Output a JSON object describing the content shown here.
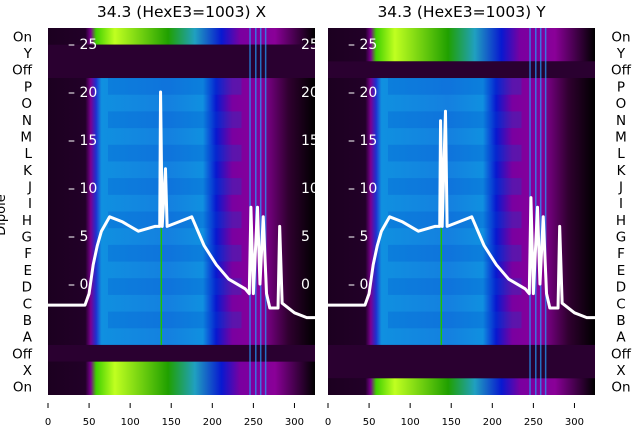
{
  "chart_data": [
    {
      "type": "heatmap",
      "title": "34.3 (HexE3=1003) X",
      "ylabel": "Dipole",
      "row_labels": [
        "On",
        "Y",
        "Off",
        "P",
        "O",
        "N",
        "M",
        "L",
        "K",
        "J",
        "I",
        "H",
        "G",
        "F",
        "E",
        "D",
        "C",
        "B",
        "A",
        "Off",
        "X",
        "On"
      ],
      "x_ticks": [
        0,
        50,
        100,
        150,
        200,
        250,
        300
      ],
      "xlim": [
        0,
        325
      ],
      "inner_y_ticks": [
        25,
        20,
        15,
        10,
        5,
        0
      ],
      "ylim": [
        -3.5,
        26
      ],
      "line": {
        "color": "#ffffff",
        "x": [
          0,
          45,
          50,
          55,
          60,
          65,
          75,
          90,
          110,
          130,
          136,
          137,
          139,
          143,
          145,
          160,
          175,
          190,
          205,
          220,
          240,
          245,
          247,
          250,
          255,
          258,
          262,
          266,
          270,
          280,
          282,
          285,
          300,
          315,
          325
        ],
        "y": [
          -2.2,
          -2.2,
          -1,
          2,
          4,
          5.5,
          7,
          6.5,
          5.5,
          6,
          6,
          20,
          6,
          12,
          6,
          6.5,
          7,
          4,
          2,
          0.5,
          -0.5,
          -1,
          8,
          -1,
          8,
          0,
          7,
          -1,
          -2.5,
          -2.5,
          6,
          -2,
          -3,
          -3.5,
          -3.5
        ]
      }
    },
    {
      "type": "heatmap",
      "title": "34.3 (HexE3=1003) Y",
      "row_labels": [
        "On",
        "Y",
        "Off",
        "P",
        "O",
        "N",
        "M",
        "L",
        "K",
        "J",
        "I",
        "H",
        "G",
        "F",
        "E",
        "D",
        "C",
        "B",
        "A",
        "Off",
        "X",
        "On"
      ],
      "x_ticks": [
        0,
        50,
        100,
        150,
        200,
        250,
        300
      ],
      "xlim": [
        0,
        325
      ],
      "inner_y_ticks": [
        25,
        20,
        15,
        10,
        5,
        0
      ],
      "ylim": [
        -3.5,
        26
      ],
      "line": {
        "color": "#ffffff",
        "x": [
          0,
          45,
          50,
          55,
          60,
          65,
          75,
          90,
          110,
          130,
          136,
          137,
          139,
          143,
          145,
          160,
          175,
          190,
          205,
          220,
          240,
          245,
          247,
          250,
          255,
          258,
          262,
          266,
          270,
          280,
          282,
          285,
          300,
          315,
          325
        ],
        "y": [
          -2.2,
          -2.2,
          -1,
          2,
          4,
          5.5,
          7,
          6.5,
          5.5,
          6,
          6,
          17,
          6,
          18,
          6,
          6.5,
          7,
          4,
          2,
          0.5,
          -0.5,
          -1,
          9,
          -1,
          8,
          0,
          7,
          -1,
          -2.5,
          -2.5,
          6,
          -2,
          -3,
          -3.5,
          -3.5
        ]
      }
    }
  ]
}
